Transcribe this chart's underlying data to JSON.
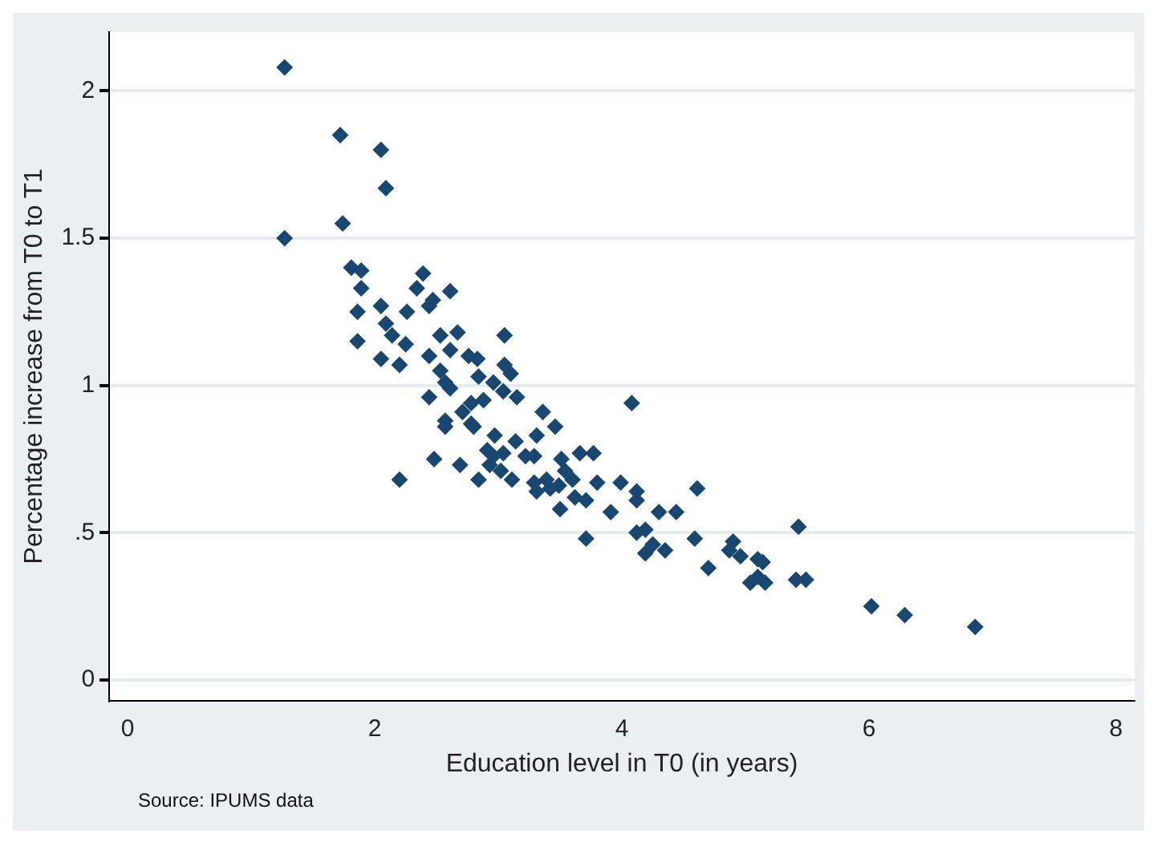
{
  "chart_data": {
    "type": "scatter",
    "xlabel": "Education level in T0 (in years)",
    "ylabel": "Percentage increase from T0 to T1",
    "annotations": [
      "Source: IPUMS data"
    ],
    "xlim": [
      -0.15,
      8.15
    ],
    "ylim": [
      -0.07,
      2.2
    ],
    "xticks": [
      0,
      2,
      4,
      6,
      8
    ],
    "yticks": [
      0,
      {
        "value": 0.5,
        "label": ".5"
      },
      1,
      1.5,
      2
    ],
    "grid": "y",
    "marker": "diamond",
    "series": [
      {
        "color": "#1a476f",
        "x": [
          1.27,
          1.27,
          1.72,
          2.05,
          2.09,
          1.74,
          1.81,
          1.89,
          1.89,
          1.86,
          1.86,
          2.05,
          2.09,
          2.14,
          2.25,
          2.05,
          2.2,
          2.26,
          2.34,
          2.39,
          2.44,
          2.47,
          2.61,
          2.53,
          2.67,
          2.44,
          2.61,
          2.53,
          2.57,
          2.61,
          2.76,
          2.83,
          3.05,
          3.05,
          3.1,
          2.84,
          2.96,
          3.04,
          3.15,
          2.44,
          2.78,
          2.71,
          2.88,
          3.36,
          3.46,
          2.57,
          2.57,
          2.78,
          2.8,
          2.97,
          3.14,
          3.31,
          2.91,
          2.96,
          3.04,
          3.22,
          3.29,
          2.48,
          2.69,
          2.93,
          3.02,
          2.84,
          3.11,
          3.29,
          3.39,
          3.51,
          3.54,
          3.6,
          3.66,
          3.77,
          3.8,
          3.31,
          3.42,
          3.49,
          3.62,
          3.71,
          3.5,
          3.91,
          3.99,
          3.71,
          2.2,
          4.08,
          4.12,
          4.12,
          4.3,
          4.44,
          4.61,
          4.12,
          4.19,
          4.25,
          4.19,
          4.35,
          4.59,
          4.7,
          4.9,
          4.87,
          4.96,
          5.1,
          5.14,
          5.1,
          5.04,
          5.16,
          5.43,
          5.41,
          5.49,
          6.02,
          6.29,
          6.86
        ],
        "values": [
          2.08,
          1.5,
          1.85,
          1.8,
          1.67,
          1.55,
          1.4,
          1.39,
          1.33,
          1.25,
          1.15,
          1.27,
          1.21,
          1.17,
          1.14,
          1.09,
          1.07,
          1.25,
          1.33,
          1.38,
          1.27,
          1.29,
          1.32,
          1.17,
          1.18,
          1.1,
          1.12,
          1.05,
          1.01,
          0.99,
          1.1,
          1.09,
          1.17,
          1.07,
          1.04,
          1.03,
          1.01,
          0.98,
          0.96,
          0.96,
          0.94,
          0.91,
          0.95,
          0.91,
          0.86,
          0.88,
          0.86,
          0.87,
          0.86,
          0.83,
          0.81,
          0.83,
          0.78,
          0.76,
          0.77,
          0.76,
          0.76,
          0.75,
          0.73,
          0.73,
          0.71,
          0.68,
          0.68,
          0.67,
          0.68,
          0.75,
          0.71,
          0.68,
          0.77,
          0.77,
          0.67,
          0.64,
          0.65,
          0.66,
          0.62,
          0.61,
          0.58,
          0.57,
          0.67,
          0.48,
          0.68,
          0.94,
          0.64,
          0.61,
          0.57,
          0.57,
          0.65,
          0.5,
          0.51,
          0.46,
          0.43,
          0.44,
          0.48,
          0.38,
          0.47,
          0.44,
          0.42,
          0.41,
          0.4,
          0.35,
          0.33,
          0.33,
          0.52,
          0.34,
          0.34,
          0.25,
          0.22,
          0.18
        ]
      }
    ]
  }
}
